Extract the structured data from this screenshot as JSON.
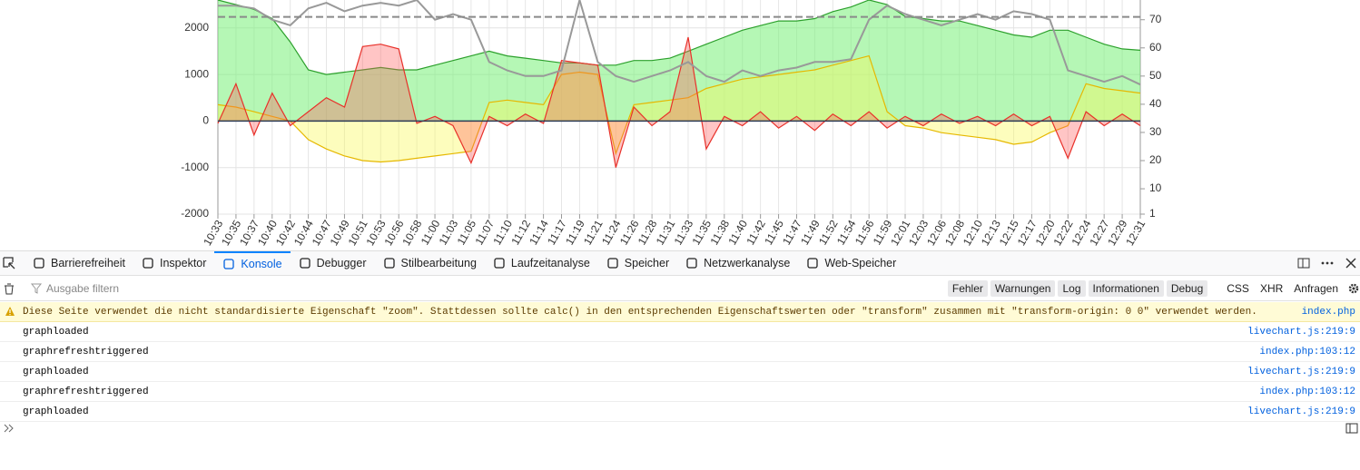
{
  "chart_data": {
    "type": "area",
    "categories": [
      "10:33",
      "10:35",
      "10:37",
      "10:40",
      "10:42",
      "10:44",
      "10:47",
      "10:49",
      "10:51",
      "10:53",
      "10:56",
      "10:58",
      "11:00",
      "11:03",
      "11:05",
      "11:07",
      "11:10",
      "11:12",
      "11:14",
      "11:17",
      "11:19",
      "11:21",
      "11:24",
      "11:26",
      "11:28",
      "11:31",
      "11:33",
      "11:35",
      "11:38",
      "11:40",
      "11:42",
      "11:45",
      "11:47",
      "11:49",
      "11:52",
      "11:54",
      "11:56",
      "11:59",
      "12:01",
      "12:03",
      "12:06",
      "12:08",
      "12:10",
      "12:13",
      "12:15",
      "12:17",
      "12:20",
      "12:22",
      "12:24",
      "12:27",
      "12:29",
      "12:31"
    ],
    "ylim": [
      -2000,
      2600
    ],
    "yticks": [
      -2000,
      -1000,
      0,
      1000,
      2000
    ],
    "y2lim": [
      1,
      77
    ],
    "y2ticks": [
      1,
      10,
      20,
      30,
      40,
      50,
      60,
      70
    ],
    "grid": true,
    "series": [
      {
        "color": "#2ca02c",
        "fill": "rgba(120,240,120,0.55)",
        "values": [
          2600,
          2500,
          2400,
          2200,
          1700,
          1100,
          1000,
          1050,
          1100,
          1150,
          1100,
          1100,
          1200,
          1300,
          1400,
          1500,
          1400,
          1350,
          1300,
          1250,
          1250,
          1200,
          1200,
          1300,
          1300,
          1350,
          1500,
          1650,
          1800,
          1950,
          2050,
          2150,
          2150,
          2200,
          2350,
          2450,
          2600,
          2500,
          2250,
          2200,
          2150,
          2150,
          2050,
          1950,
          1850,
          1800,
          1950,
          1950,
          1800,
          1650,
          1550,
          1520
        ]
      },
      {
        "color": "#e6b800",
        "fill": "rgba(250,250,90,0.4)",
        "values": [
          350,
          300,
          200,
          100,
          0,
          -400,
          -600,
          -750,
          -850,
          -880,
          -850,
          -800,
          -750,
          -700,
          -650,
          400,
          450,
          400,
          350,
          1000,
          1050,
          1000,
          -700,
          350,
          400,
          450,
          500,
          700,
          800,
          900,
          950,
          1000,
          1050,
          1100,
          1200,
          1300,
          1400,
          200,
          -100,
          -150,
          -250,
          -300,
          -350,
          -400,
          -500,
          -450,
          -250,
          -100,
          800,
          700,
          650,
          600
        ]
      },
      {
        "color": "#e8312a",
        "fill": "rgba(255,90,90,0.35)",
        "values": [
          -50,
          800,
          -300,
          600,
          -100,
          200,
          500,
          300,
          1600,
          1650,
          1550,
          -50,
          100,
          -100,
          -900,
          100,
          -100,
          150,
          -50,
          1300,
          1250,
          1200,
          -1000,
          300,
          -100,
          200,
          1800,
          -600,
          100,
          -100,
          200,
          -150,
          100,
          -200,
          150,
          -100,
          200,
          -150,
          100,
          -100,
          150,
          -50,
          100,
          -100,
          150,
          -100,
          100,
          -800,
          200,
          -100,
          150,
          -100
        ]
      },
      {
        "color": "#999999",
        "axis": "y2",
        "values": [
          75,
          75,
          74,
          70,
          68,
          74,
          76,
          73,
          75,
          76,
          75,
          77,
          70,
          72,
          70,
          55,
          52,
          50,
          50,
          52,
          77,
          55,
          50,
          48,
          50,
          52,
          55,
          50,
          48,
          52,
          50,
          52,
          53,
          55,
          55,
          56,
          70,
          75,
          72,
          70,
          68,
          70,
          72,
          70,
          73,
          72,
          70,
          52,
          50,
          48,
          50,
          47
        ]
      },
      {
        "color": "#8a8a8a",
        "axis": "y2",
        "dash": true,
        "values": [
          71,
          71,
          71,
          71,
          71,
          71,
          71,
          71,
          71,
          71,
          71,
          71,
          71,
          71,
          71,
          71,
          71,
          71,
          71,
          71,
          71,
          71,
          71,
          71,
          71,
          71,
          71,
          71,
          71,
          71,
          71,
          71,
          71,
          71,
          71,
          71,
          71,
          71,
          71,
          71,
          71,
          71,
          71,
          71,
          71,
          71,
          71,
          71,
          71,
          71,
          71,
          71
        ]
      }
    ]
  },
  "devtools": {
    "tabs": [
      "Barrierefreiheit",
      "Inspektor",
      "Konsole",
      "Debugger",
      "Stilbearbeitung",
      "Laufzeitanalyse",
      "Speicher",
      "Netzwerkanalyse",
      "Web-Speicher"
    ],
    "selected_tab": "Konsole",
    "filter_placeholder": "Ausgabe filtern",
    "level_filters": [
      "Fehler",
      "Warnungen",
      "Log",
      "Informationen",
      "Debug"
    ],
    "extra_filters": [
      "CSS",
      "XHR",
      "Anfragen"
    ],
    "messages": [
      {
        "level": "warning",
        "text": "Diese Seite verwendet die nicht standardisierte Eigenschaft \"zoom\". Stattdessen sollte calc() in den entsprechenden Eigenschaftswerten oder \"transform\" zusammen mit \"transform-origin: 0 0\" verwendet werden.",
        "source": "index.php"
      },
      {
        "level": "log",
        "text": "graphloaded",
        "source": "livechart.js:219:9"
      },
      {
        "level": "log",
        "text": "graphrefreshtriggered",
        "source": "index.php:103:12"
      },
      {
        "level": "log",
        "text": "graphloaded",
        "source": "livechart.js:219:9"
      },
      {
        "level": "log",
        "text": "graphrefreshtriggered",
        "source": "index.php:103:12"
      },
      {
        "level": "log",
        "text": "graphloaded",
        "source": "livechart.js:219:9"
      }
    ]
  }
}
